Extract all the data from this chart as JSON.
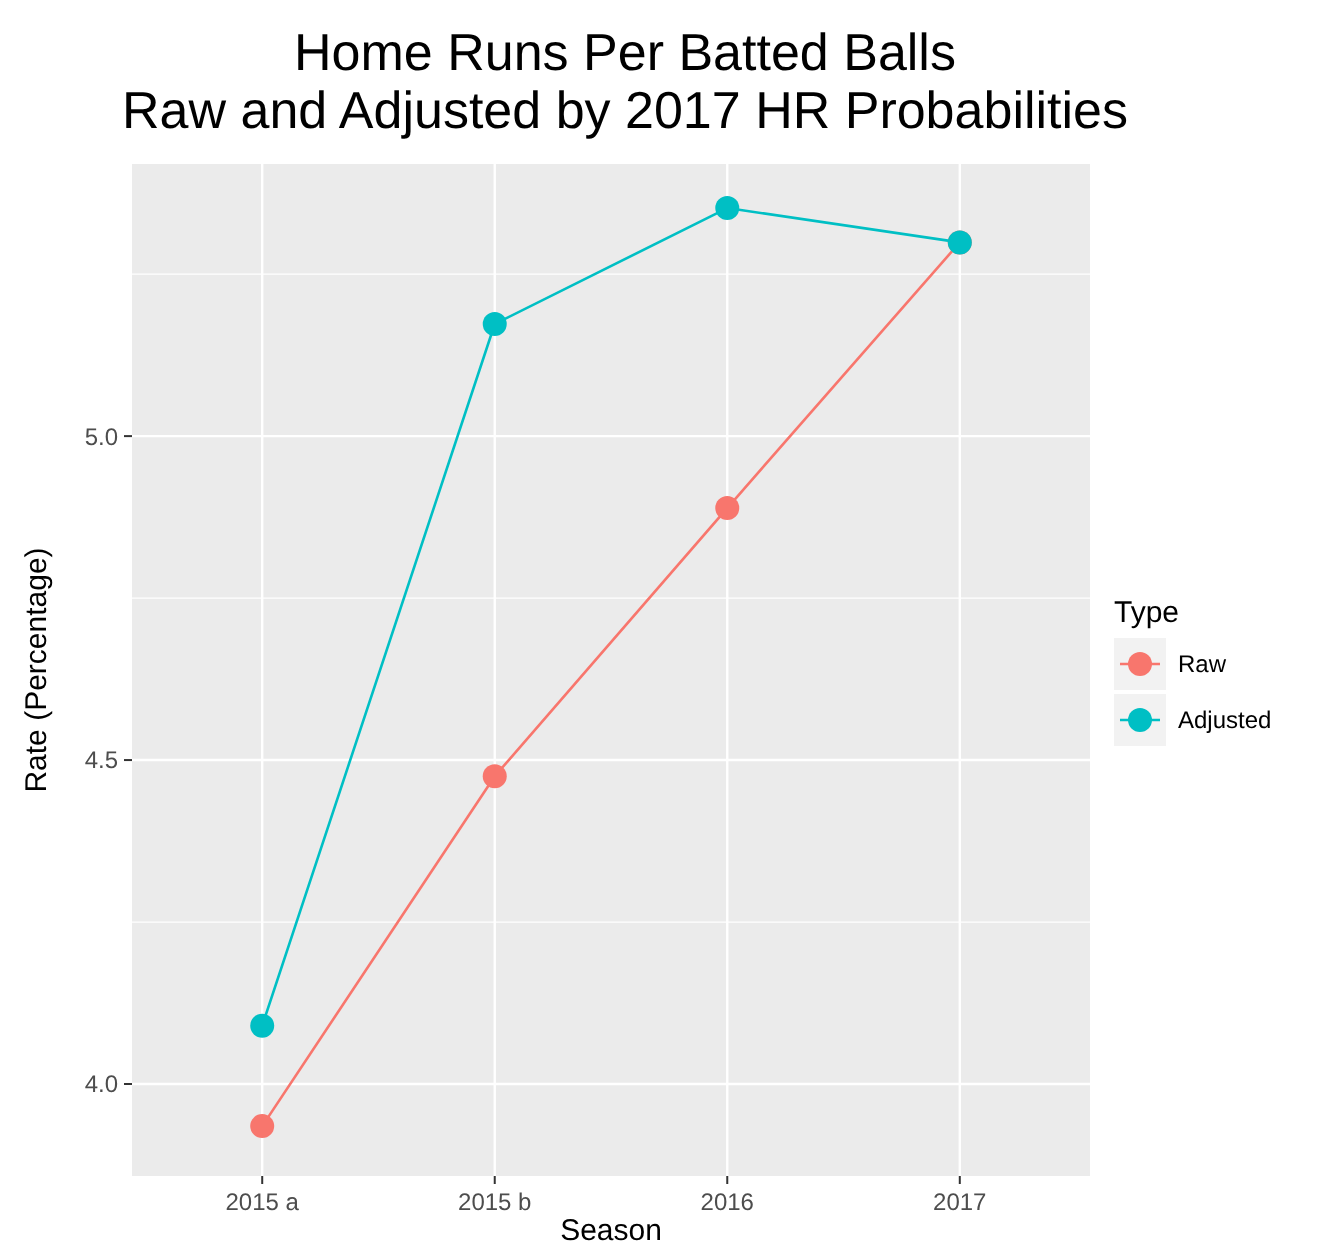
{
  "chart_data": {
    "type": "line",
    "title": "Home Runs Per Batted Balls\nRaw and Adjusted by 2017 HR Probabilities",
    "xlabel": "Season",
    "ylabel": "Rate (Percentage)",
    "legend_title": "Type",
    "categories": [
      "2015 a",
      "2015 b",
      "2016",
      "2017"
    ],
    "series": [
      {
        "name": "Raw",
        "color": "#f8766d",
        "values": [
          3.935,
          4.475,
          4.889,
          5.299
        ]
      },
      {
        "name": "Adjusted",
        "color": "#00bfc4",
        "values": [
          4.09,
          5.173,
          5.352,
          5.299
        ]
      }
    ],
    "ylim": [
      3.858,
      5.42
    ],
    "yticks": [
      {
        "value": 4,
        "label": "4.0"
      },
      {
        "value": 4.5,
        "label": "4.5"
      },
      {
        "value": 5,
        "label": "5.0"
      }
    ],
    "grid": true,
    "legend": "right",
    "marker": "circle",
    "line_style": "solid"
  }
}
